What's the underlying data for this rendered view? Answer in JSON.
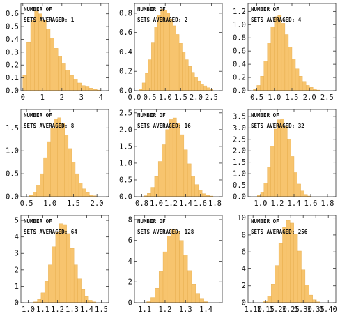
{
  "figure": {
    "colors": {
      "bar_fill": "#f7c46e",
      "bar_edge": "#e2a640",
      "axis": "#333333",
      "text": "#111111"
    }
  },
  "chart_data": [
    {
      "type": "bar",
      "annotation": [
        "NUMBER OF",
        "SETS AVERAGED: 1"
      ],
      "xlim": [
        -0.1,
        4.4
      ],
      "ylim": [
        0,
        0.68
      ],
      "xticks": [
        0,
        1,
        2,
        3,
        4
      ],
      "xtick_labels": [
        "0",
        "1",
        "2",
        "3",
        "4"
      ],
      "yticks": [
        0,
        0.1,
        0.2,
        0.3,
        0.4,
        0.5,
        0.6
      ],
      "ytick_labels": [
        "0.0",
        "0.1",
        "0.2",
        "0.3",
        "0.4",
        "0.5",
        "0.6"
      ],
      "bins": {
        "x": [
          0.1,
          0.3,
          0.5,
          0.7,
          0.9,
          1.1,
          1.3,
          1.5,
          1.7,
          1.9,
          2.1,
          2.3,
          2.5,
          2.7,
          2.9,
          3.1,
          3.3,
          3.5,
          3.7,
          3.9
        ],
        "values": [
          0.12,
          0.38,
          0.55,
          0.62,
          0.6,
          0.55,
          0.48,
          0.41,
          0.33,
          0.27,
          0.21,
          0.16,
          0.12,
          0.09,
          0.06,
          0.04,
          0.03,
          0.02,
          0.01,
          0.005
        ]
      }
    },
    {
      "type": "bar",
      "annotation": [
        "NUMBER OF",
        "SETS AVERAGED: 2"
      ],
      "xlim": [
        0.0,
        2.85
      ],
      "ylim": [
        0,
        0.9
      ],
      "xticks": [
        0.0,
        0.5,
        1.0,
        1.5,
        2.0,
        2.5
      ],
      "xtick_labels": [
        "0.0",
        "0.5",
        "1.0",
        "1.5",
        "2.0",
        "2.5"
      ],
      "yticks": [
        0,
        0.2,
        0.4,
        0.6,
        0.8
      ],
      "ytick_labels": [
        "0.0",
        "0.2",
        "0.4",
        "0.6",
        "0.8"
      ],
      "bins": {
        "x": [
          0.2,
          0.3,
          0.4,
          0.5,
          0.6,
          0.7,
          0.8,
          0.9,
          1.0,
          1.1,
          1.2,
          1.3,
          1.4,
          1.5,
          1.6,
          1.7,
          1.8,
          1.9,
          2.0,
          2.1,
          2.2,
          2.3,
          2.4,
          2.5
        ],
        "values": [
          0.02,
          0.08,
          0.18,
          0.32,
          0.5,
          0.66,
          0.78,
          0.84,
          0.83,
          0.8,
          0.74,
          0.67,
          0.58,
          0.49,
          0.4,
          0.32,
          0.25,
          0.19,
          0.14,
          0.1,
          0.07,
          0.05,
          0.03,
          0.02
        ]
      }
    },
    {
      "type": "bar",
      "annotation": [
        "NUMBER OF",
        "SETS AVERAGED: 4"
      ],
      "xlim": [
        0.25,
        2.75
      ],
      "ylim": [
        0,
        1.32
      ],
      "xticks": [
        0.5,
        1.0,
        1.5,
        2.0,
        2.5
      ],
      "xtick_labels": [
        "0.5",
        "1.0",
        "1.5",
        "2.0",
        "2.5"
      ],
      "yticks": [
        0,
        0.2,
        0.4,
        0.6,
        0.8,
        1.0,
        1.2
      ],
      "ytick_labels": [
        "0.0",
        "0.2",
        "0.4",
        "0.6",
        "0.8",
        "1.0",
        "1.2"
      ],
      "bins": {
        "x": [
          0.45,
          0.55,
          0.65,
          0.75,
          0.85,
          0.95,
          1.05,
          1.15,
          1.25,
          1.35,
          1.45,
          1.55,
          1.65,
          1.75,
          1.85,
          1.95,
          2.05,
          2.15,
          2.25
        ],
        "values": [
          0.02,
          0.08,
          0.22,
          0.45,
          0.72,
          0.97,
          1.12,
          1.14,
          1.02,
          0.85,
          0.66,
          0.48,
          0.33,
          0.22,
          0.14,
          0.08,
          0.05,
          0.03,
          0.01
        ]
      }
    },
    {
      "type": "bar",
      "annotation": [
        "NUMBER OF",
        "SETS AVERAGED: 8"
      ],
      "xlim": [
        0.38,
        2.25
      ],
      "ylim": [
        0,
        1.9
      ],
      "xticks": [
        0.5,
        1.0,
        1.5,
        2.0
      ],
      "xtick_labels": [
        "0.5",
        "1.0",
        "1.5",
        "2.0"
      ],
      "yticks": [
        0,
        0.5,
        1.0,
        1.5
      ],
      "ytick_labels": [
        "0.0",
        "0.5",
        "1.0",
        "1.5"
      ],
      "bins": {
        "x": [
          0.6,
          0.675,
          0.75,
          0.825,
          0.9,
          0.975,
          1.05,
          1.125,
          1.2,
          1.275,
          1.35,
          1.425,
          1.5,
          1.575,
          1.65,
          1.725,
          1.8,
          1.875,
          1.95
        ],
        "values": [
          0.03,
          0.1,
          0.25,
          0.5,
          0.85,
          1.2,
          1.5,
          1.7,
          1.72,
          1.6,
          1.35,
          1.05,
          0.75,
          0.5,
          0.3,
          0.17,
          0.09,
          0.04,
          0.02
        ]
      }
    },
    {
      "type": "bar",
      "annotation": [
        "NUMBER OF",
        "SETS AVERAGED: 16"
      ],
      "xlim": [
        0.7,
        1.9
      ],
      "ylim": [
        0,
        2.6
      ],
      "xticks": [
        0.8,
        1.0,
        1.2,
        1.4,
        1.6,
        1.8
      ],
      "xtick_labels": [
        "0.8",
        "1.0",
        "1.2",
        "1.4",
        "1.6",
        "1.8"
      ],
      "yticks": [
        0,
        0.5,
        1.0,
        1.5,
        2.0,
        2.5
      ],
      "ytick_labels": [
        "0.0",
        "0.5",
        "1.0",
        "1.5",
        "2.0",
        "2.5"
      ],
      "bins": {
        "x": [
          0.85,
          0.9,
          0.95,
          1.0,
          1.05,
          1.1,
          1.15,
          1.2,
          1.25,
          1.3,
          1.35,
          1.4,
          1.45,
          1.5,
          1.55,
          1.6,
          1.65,
          1.7,
          1.75
        ],
        "values": [
          0.03,
          0.1,
          0.28,
          0.6,
          1.05,
          1.55,
          2.0,
          2.3,
          2.35,
          2.2,
          1.85,
          1.4,
          0.98,
          0.62,
          0.36,
          0.19,
          0.09,
          0.04,
          0.02
        ]
      }
    },
    {
      "type": "bar",
      "annotation": [
        "NUMBER OF",
        "SETS AVERAGED: 32"
      ],
      "xlim": [
        0.85,
        1.9
      ],
      "ylim": [
        0,
        3.8
      ],
      "xticks": [
        1.0,
        1.2,
        1.4,
        1.6,
        1.8
      ],
      "xtick_labels": [
        "1.0",
        "1.2",
        "1.4",
        "1.6",
        "1.8"
      ],
      "yticks": [
        0,
        0.5,
        1.0,
        1.5,
        2.0,
        2.5,
        3.0,
        3.5
      ],
      "ytick_labels": [
        "0.0",
        "0.5",
        "1.0",
        "1.5",
        "2.0",
        "2.5",
        "3.0",
        "3.5"
      ],
      "bins": {
        "x": [
          0.98,
          1.02,
          1.06,
          1.1,
          1.14,
          1.18,
          1.22,
          1.26,
          1.3,
          1.34,
          1.38,
          1.42,
          1.46,
          1.5,
          1.54,
          1.58
        ],
        "values": [
          0.05,
          0.2,
          0.6,
          1.3,
          2.2,
          2.95,
          3.35,
          3.4,
          3.1,
          2.5,
          1.75,
          1.05,
          0.55,
          0.25,
          0.1,
          0.03
        ]
      }
    },
    {
      "type": "bar",
      "annotation": [
        "NUMBER OF",
        "SETS AVERAGED: 64"
      ],
      "xlim": [
        0.95,
        1.55
      ],
      "ylim": [
        0,
        5.3
      ],
      "xticks": [
        1.0,
        1.1,
        1.2,
        1.3,
        1.4,
        1.5
      ],
      "xtick_labels": [
        "1.0",
        "1.1",
        "1.2",
        "1.3",
        "1.4",
        "1.5"
      ],
      "yticks": [
        0,
        1,
        2,
        3,
        4,
        5
      ],
      "ytick_labels": [
        "0",
        "1",
        "2",
        "3",
        "4",
        "5"
      ],
      "bins": {
        "x": [
          1.05,
          1.075,
          1.1,
          1.125,
          1.15,
          1.175,
          1.2,
          1.225,
          1.25,
          1.275,
          1.3,
          1.325,
          1.35,
          1.375,
          1.4,
          1.425,
          1.45
        ],
        "values": [
          0.05,
          0.2,
          0.6,
          1.3,
          2.3,
          3.4,
          4.3,
          4.8,
          4.75,
          4.2,
          3.3,
          2.3,
          1.45,
          0.8,
          0.38,
          0.15,
          0.05
        ]
      }
    },
    {
      "type": "bar",
      "annotation": [
        "NUMBER OF",
        "SETS AVERAGED: 128"
      ],
      "xlim": [
        1.05,
        1.48
      ],
      "ylim": [
        0,
        8.4
      ],
      "xticks": [
        1.1,
        1.2,
        1.3,
        1.4
      ],
      "xtick_labels": [
        "1.1",
        "1.2",
        "1.3",
        "1.4"
      ],
      "yticks": [
        0,
        2,
        4,
        6,
        8
      ],
      "ytick_labels": [
        "0",
        "2",
        "4",
        "6",
        "8"
      ],
      "bins": {
        "x": [
          1.12,
          1.14,
          1.16,
          1.18,
          1.2,
          1.22,
          1.24,
          1.26,
          1.28,
          1.3,
          1.32,
          1.34,
          1.36,
          1.38,
          1.4
        ],
        "values": [
          0.1,
          0.5,
          1.4,
          3.0,
          4.9,
          6.4,
          7.1,
          6.9,
          6.0,
          4.6,
          3.1,
          1.8,
          0.9,
          0.35,
          0.1
        ]
      }
    },
    {
      "type": "bar",
      "annotation": [
        "NUMBER OF",
        "SETS AVERAGED: 256"
      ],
      "xlim": [
        1.08,
        1.43
      ],
      "ylim": [
        0,
        10.3
      ],
      "xticks": [
        1.1,
        1.15,
        1.2,
        1.25,
        1.3,
        1.35,
        1.4
      ],
      "xtick_labels": [
        "1.10",
        "1.15",
        "1.20",
        "1.25",
        "1.30",
        "1.35",
        "1.40"
      ],
      "yticks": [
        0,
        2,
        4,
        6,
        8,
        10
      ],
      "ytick_labels": [
        "0",
        "2",
        "4",
        "6",
        "8",
        "10"
      ],
      "bins": {
        "x": [
          1.15,
          1.165,
          1.18,
          1.195,
          1.21,
          1.225,
          1.24,
          1.255,
          1.27,
          1.285,
          1.3,
          1.315,
          1.33,
          1.345,
          1.36
        ],
        "values": [
          0.2,
          0.8,
          2.2,
          4.4,
          7.0,
          8.9,
          9.7,
          9.4,
          8.1,
          6.1,
          3.9,
          2.1,
          0.9,
          0.35,
          0.1
        ]
      }
    }
  ]
}
